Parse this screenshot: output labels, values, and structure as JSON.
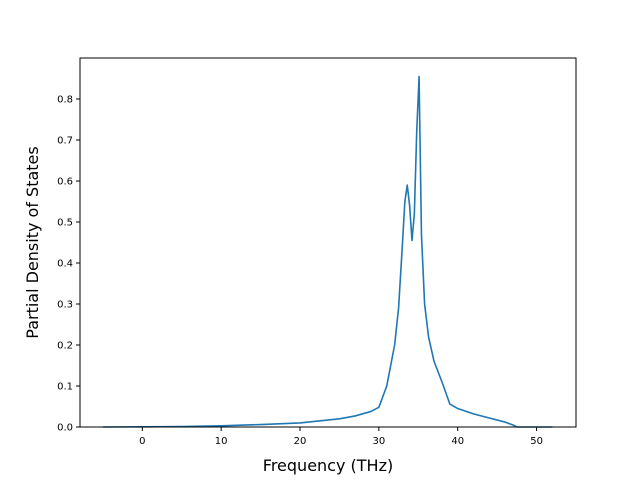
{
  "chart_data": {
    "type": "line",
    "title": "",
    "xlabel": "Frequency (THz)",
    "ylabel": "Partial Density of States",
    "xlim": [
      -7.9,
      55.0
    ],
    "ylim": [
      0.0,
      0.9
    ],
    "xticks": [
      0,
      10,
      20,
      30,
      40,
      50
    ],
    "yticks": [
      0.0,
      0.1,
      0.2,
      0.3,
      0.4,
      0.5,
      0.6,
      0.7,
      0.8
    ],
    "xtick_labels": [
      "0",
      "10",
      "20",
      "30",
      "40",
      "50"
    ],
    "ytick_labels": [
      "0.0",
      "0.1",
      "0.2",
      "0.3",
      "0.4",
      "0.5",
      "0.6",
      "0.7",
      "0.8"
    ],
    "grid": false,
    "legend": "none",
    "series": [
      {
        "color": "#1f77b4",
        "x": [
          -5,
          0,
          5,
          10,
          15,
          20,
          25,
          27,
          29,
          30,
          31,
          32,
          32.5,
          33,
          33.3,
          33.6,
          33.9,
          34.2,
          34.5,
          34.8,
          35.1,
          35.4,
          35.8,
          36.3,
          37,
          38,
          39,
          40,
          42,
          44,
          46,
          47,
          47.5,
          50,
          52
        ],
        "y": [
          0.0,
          0.0005,
          0.001,
          0.003,
          0.006,
          0.01,
          0.02,
          0.027,
          0.038,
          0.048,
          0.1,
          0.2,
          0.29,
          0.45,
          0.55,
          0.59,
          0.54,
          0.455,
          0.52,
          0.72,
          0.855,
          0.47,
          0.3,
          0.22,
          0.16,
          0.11,
          0.056,
          0.045,
          0.032,
          0.022,
          0.012,
          0.005,
          0.0,
          0.0,
          0.0
        ]
      }
    ]
  }
}
